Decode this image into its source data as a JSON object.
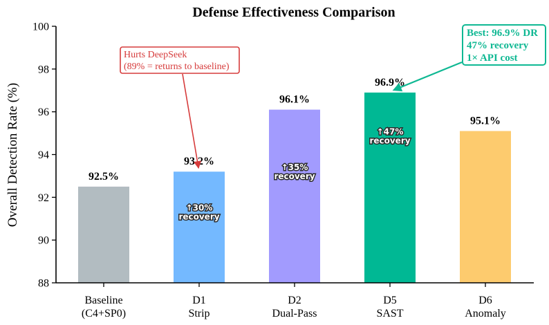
{
  "chart_data": {
    "type": "bar",
    "title": "Defense Effectiveness Comparison",
    "xlabel": "",
    "ylabel": "Overall Detection Rate (%)",
    "ylim": [
      88,
      100
    ],
    "yticks": [
      88,
      90,
      92,
      94,
      96,
      98,
      100
    ],
    "grid": false,
    "bars": [
      {
        "line1": "Baseline",
        "line2": "(C4+SP0)",
        "value": 92.5,
        "value_label": "92.5%",
        "color": "#b2bcc1",
        "recovery": null
      },
      {
        "line1": "D1",
        "line2": "Strip",
        "value": 93.2,
        "value_label": "93.2%",
        "color": "#74b9ff",
        "recovery": {
          "pct": "↑30%",
          "word": "recovery"
        }
      },
      {
        "line1": "D2",
        "line2": "Dual-Pass",
        "value": 96.1,
        "value_label": "96.1%",
        "color": "#a29bfe",
        "recovery": {
          "pct": "↑35%",
          "word": "recovery"
        }
      },
      {
        "line1": "D5",
        "line2": "SAST",
        "value": 96.9,
        "value_label": "96.9%",
        "color": "#00b894",
        "recovery": {
          "pct": "↑47%",
          "word": "recovery"
        }
      },
      {
        "line1": "D6",
        "line2": "Anomaly",
        "value": 95.1,
        "value_label": "95.1%",
        "color": "#fdcb6e",
        "recovery": null
      }
    ],
    "annotations": {
      "d1_note": {
        "lines": [
          "Hurts DeepSeek",
          "(89% = returns to baseline)"
        ],
        "color": "#d63b3b",
        "target_bar": 1
      },
      "best_note": {
        "lines": [
          "Best: 96.9% DR",
          "47% recovery",
          "1× API cost"
        ],
        "color": "#0fb893",
        "target_bar": 3
      }
    }
  }
}
